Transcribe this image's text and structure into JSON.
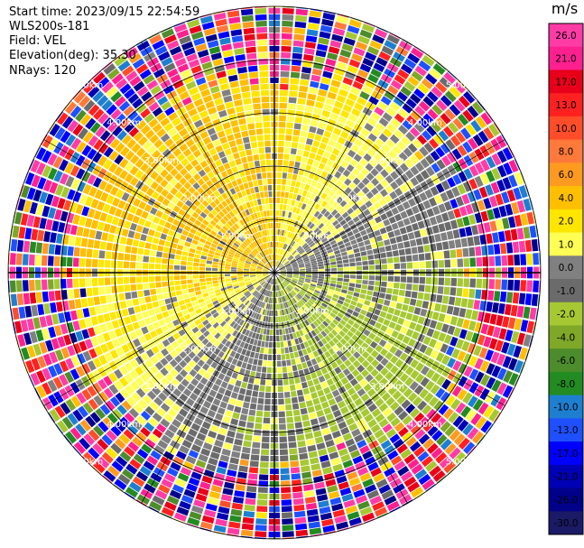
{
  "header": {
    "start_time": "Start time: 2023/09/15 22:54:59",
    "instrument": "WLS200s-181",
    "field": "Field: VEL",
    "elevation": "Elevation(deg): 35.30",
    "nrays": "NRays: 120"
  },
  "colorbar": {
    "title": "m/s",
    "ticks": [
      "26.0",
      "21.0",
      "17.0",
      "13.0",
      "10.0",
      "8.0",
      "6.0",
      "4.0",
      "2.0",
      "1.0",
      "0.0",
      "-1.0",
      "-2.0",
      "-4.0",
      "-6.0",
      "-8.0",
      "-10.0",
      "-13.0",
      "-17.0",
      "-21.0",
      "-26.0",
      "-30.0"
    ],
    "colors": [
      "#ff3ca6",
      "#ff2090",
      "#e8001a",
      "#ff2020",
      "#ff4d2a",
      "#ff7a3a",
      "#ff9a20",
      "#ffbf00",
      "#ffe600",
      "#ffff55",
      "#808080",
      "#6b6b6b",
      "#a6c832",
      "#7fa828",
      "#4c8c2b",
      "#228b22",
      "#1e7fd0",
      "#1e50ff",
      "#0000ff",
      "#0000b4",
      "#00008b",
      "#1a1a66"
    ]
  },
  "chart_data": {
    "type": "heatmap",
    "projection": "polar PPI",
    "field": "VEL",
    "units": "m/s",
    "nrays": 120,
    "elevation_deg": 35.3,
    "range_ring_labels": [
      "1.00km",
      "2.00km",
      "3.00km",
      "4.00km",
      "5.00km"
    ],
    "range_rings_km": [
      1,
      2,
      3,
      4,
      5
    ],
    "vmin": -30.0,
    "vmax": 30.0,
    "pattern": "positive (yellow) velocities north and west, negative (green) velocities south and east, noisy multicolor beyond about 3.5 km"
  }
}
